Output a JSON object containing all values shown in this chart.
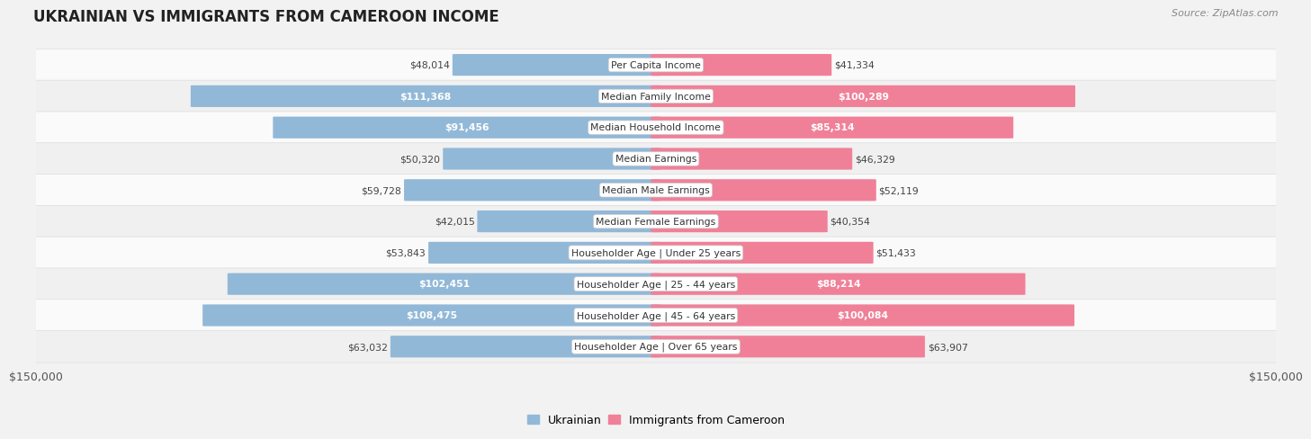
{
  "title": "UKRAINIAN VS IMMIGRANTS FROM CAMEROON INCOME",
  "source": "Source: ZipAtlas.com",
  "categories": [
    "Per Capita Income",
    "Median Family Income",
    "Median Household Income",
    "Median Earnings",
    "Median Male Earnings",
    "Median Female Earnings",
    "Householder Age | Under 25 years",
    "Householder Age | 25 - 44 years",
    "Householder Age | 45 - 64 years",
    "Householder Age | Over 65 years"
  ],
  "ukrainian_values": [
    48014,
    111368,
    91456,
    50320,
    59728,
    42015,
    53843,
    102451,
    108475,
    63032
  ],
  "cameroon_values": [
    41334,
    100289,
    85314,
    46329,
    52119,
    40354,
    51433,
    88214,
    100084,
    63907
  ],
  "ukrainian_labels": [
    "$48,014",
    "$111,368",
    "$91,456",
    "$50,320",
    "$59,728",
    "$42,015",
    "$53,843",
    "$102,451",
    "$108,475",
    "$63,032"
  ],
  "cameroon_labels": [
    "$41,334",
    "$100,289",
    "$85,314",
    "$46,329",
    "$52,119",
    "$40,354",
    "$51,433",
    "$88,214",
    "$100,084",
    "$63,907"
  ],
  "ukrainian_color": "#92b8d8",
  "cameroon_color": "#f08098",
  "max_value": 150000,
  "bar_height": 0.68,
  "bg_color": "#f2f2f2",
  "legend_ukrainian": "Ukrainian",
  "legend_cameroon": "Immigrants from Cameroon",
  "x_tick_label_left": "$150,000",
  "x_tick_label_right": "$150,000",
  "ukr_threshold": 65000,
  "cam_threshold": 65000,
  "row_colors": [
    "#ffffff",
    "#eeeeee",
    "#ffffff",
    "#eeeeee",
    "#ffffff",
    "#eeeeee",
    "#ffffff",
    "#eeeeee",
    "#ffffff",
    "#eeeeee"
  ]
}
